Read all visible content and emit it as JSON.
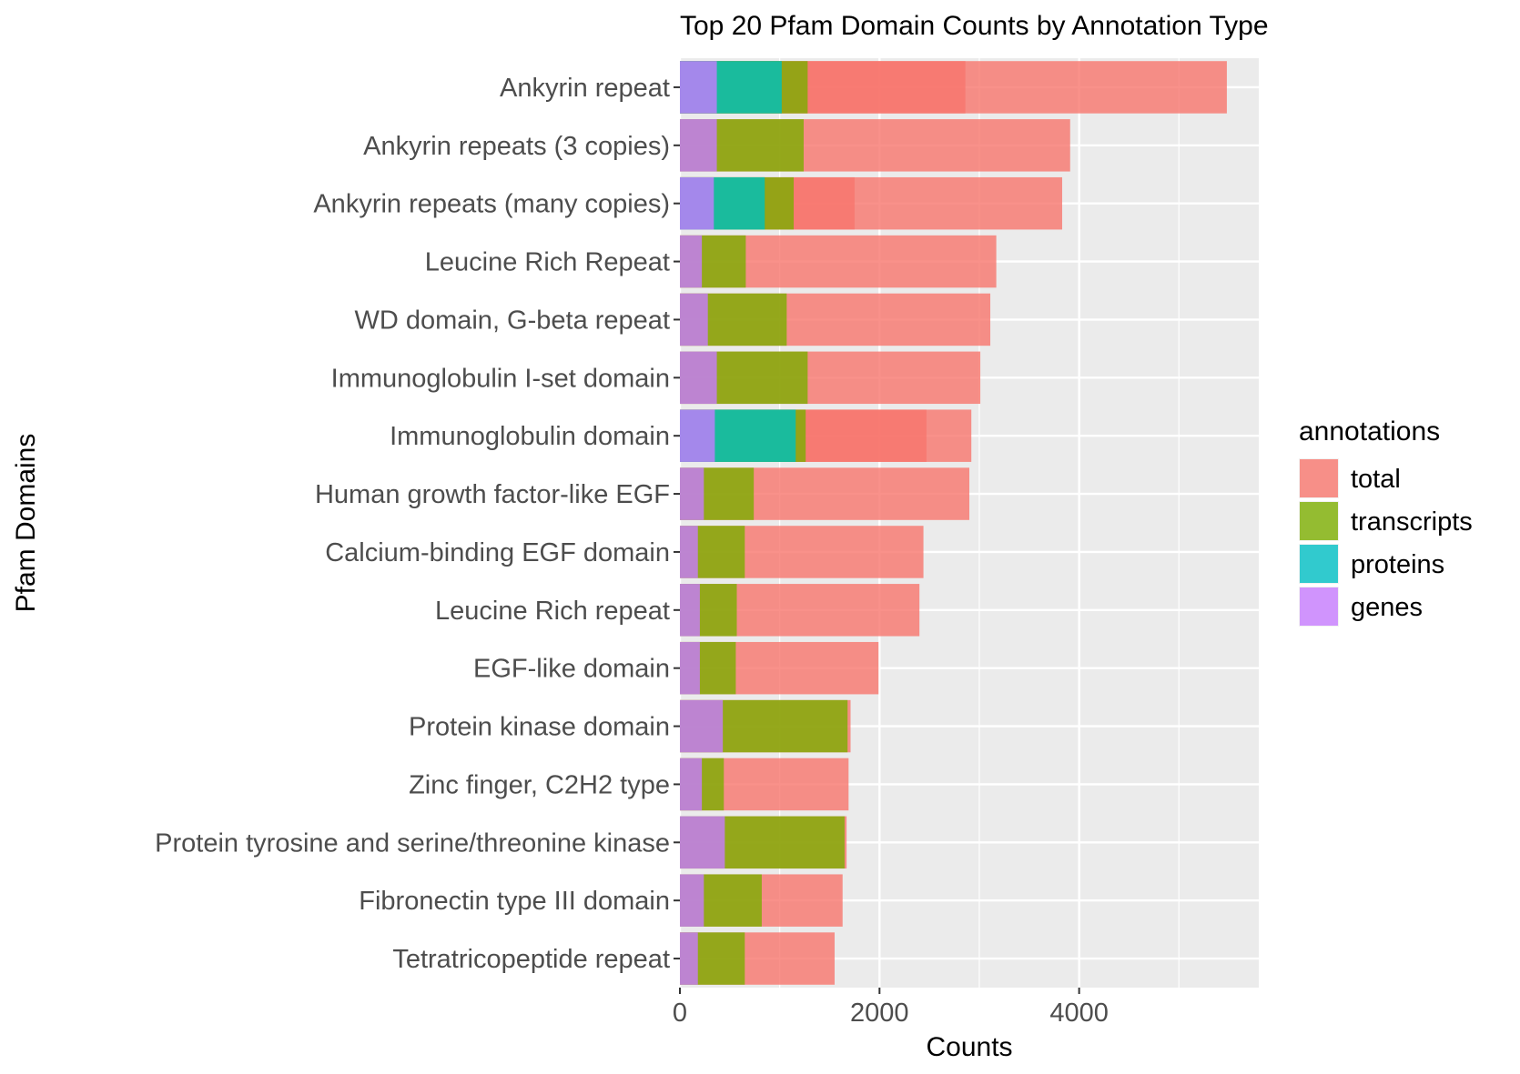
{
  "chart_data": {
    "type": "bar",
    "orientation": "horizontal",
    "stacking": "overlaid",
    "title": "Top 20 Pfam Domain Counts by Annotation Type",
    "xlabel": "Counts",
    "ylabel": "Pfam Domains",
    "xlim": [
      0,
      5800
    ],
    "x_ticks": [
      0,
      2000,
      4000
    ],
    "x_tick_labels": [
      "0",
      "2000",
      "4000"
    ],
    "grid": true,
    "legend": {
      "title": "annotations",
      "position": "right",
      "entries": [
        "total",
        "transcripts",
        "proteins",
        "genes"
      ]
    },
    "colors": {
      "total": "#F8766D",
      "transcripts": "#7CAE00",
      "proteins": "#00BFC4",
      "genes": "#C77CFF"
    },
    "categories": [
      "Ankyrin repeat",
      "Ankyrin repeats (3 copies)",
      "Ankyrin repeats (many copies)",
      "Leucine Rich Repeat",
      "WD domain, G-beta repeat",
      "Immunoglobulin I-set domain",
      "Immunoglobulin domain",
      "Human growth factor-like EGF",
      "Calcium-binding EGF domain",
      "Leucine Rich repeat",
      "EGF-like domain",
      "Protein kinase domain",
      "Zinc finger, C2H2 type",
      "Protein tyrosine and serine/threonine kinase",
      "Fibronectin type III domain",
      "Tetratricopeptide repeat"
    ],
    "series": [
      {
        "name": "total",
        "values": [
          5480,
          3910,
          3830,
          3170,
          3110,
          3010,
          2920,
          2900,
          2440,
          2400,
          1990,
          1710,
          1690,
          1670,
          1630,
          1550
        ],
        "values_secondary": [
          2860,
          null,
          1750,
          null,
          null,
          null,
          2470,
          null,
          null,
          null,
          null,
          null,
          null,
          null,
          null,
          null
        ]
      },
      {
        "name": "transcripts",
        "values": [
          1280,
          1240,
          1140,
          660,
          1070,
          1280,
          1260,
          740,
          650,
          570,
          560,
          1680,
          440,
          1650,
          820,
          650
        ],
        "values_secondary": [
          1020,
          null,
          850,
          null,
          null,
          null,
          1160,
          null,
          null,
          null,
          null,
          null,
          null,
          null,
          null,
          null
        ]
      },
      {
        "name": "proteins",
        "values": [
          1020,
          null,
          850,
          null,
          null,
          null,
          1160,
          null,
          null,
          null,
          null,
          null,
          null,
          null,
          null,
          null
        ]
      },
      {
        "name": "genes",
        "values": [
          370,
          370,
          340,
          220,
          280,
          370,
          350,
          240,
          180,
          200,
          200,
          430,
          220,
          450,
          240,
          180
        ]
      }
    ]
  }
}
